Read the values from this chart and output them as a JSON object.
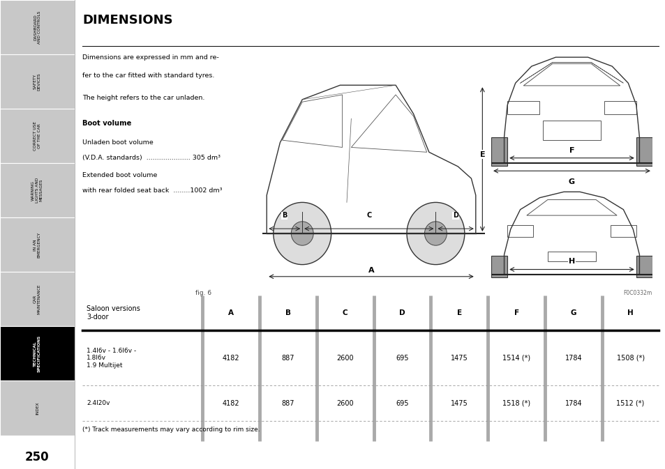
{
  "title": "DIMENSIONS",
  "page_num": "250",
  "bg_color": "#ffffff",
  "sidebar_tabs": [
    {
      "label": "DASHBOARD\nAND CONTROLS",
      "active": false
    },
    {
      "label": "SAFETY\nDEVICES",
      "active": false
    },
    {
      "label": "CORRECT USE\nOF THE CAR",
      "active": false
    },
    {
      "label": "WARNING\nLIGHTS AND\nMESSAGES",
      "active": false
    },
    {
      "label": "IN AN\nEMERGENCY",
      "active": false
    },
    {
      "label": "CAR\nMAINTENANCE",
      "active": false
    },
    {
      "label": "TECHNICAL\nSPECIFICATIONS",
      "active": true
    },
    {
      "label": "INDEX",
      "active": false
    }
  ],
  "body_text_line1": "Dimensions are expressed in mm and re-",
  "body_text_line2": "fer to the car fitted with standard tyres.",
  "body_text_line3": "The height refers to the car unladen.",
  "boot_volume_title": "Boot volume",
  "boot_text1": "Unladen boot volume",
  "boot_text1b": "(V.D.A. standards)  ..................... 305 dm³",
  "boot_text2": "Extended boot volume",
  "boot_text2b": "with rear folded seat back  ........1002 dm³",
  "fig_label": "fig. 6",
  "fig_code": "F0C0332m",
  "table_header": [
    "Saloon versions\n3-door",
    "A",
    "B",
    "C",
    "D",
    "E",
    "F",
    "G",
    "H"
  ],
  "table_row1_label": "1.4I6v - 1.6I6v -\n1.8I6v\n1.9 Multijet",
  "table_row1_vals": [
    "4182",
    "887",
    "2600",
    "695",
    "1475",
    "1514 (*)",
    "1784",
    "1508 (*)"
  ],
  "table_row2_label": "2.4I20v",
  "table_row2_vals": [
    "4182",
    "887",
    "2600",
    "695",
    "1475",
    "1518 (*)",
    "1784",
    "1512 (*)"
  ],
  "footnote": "(*) Track measurements may vary according to rim size.",
  "sidebar_bg": "#c8c8c8",
  "sidebar_active_bg": "#000000",
  "sidebar_active_fg": "#ffffff",
  "sidebar_inactive_fg": "#000000",
  "col_divider_color": "#aaaaaa",
  "header_line_color": "#000000",
  "dashed_line_color": "#999999"
}
